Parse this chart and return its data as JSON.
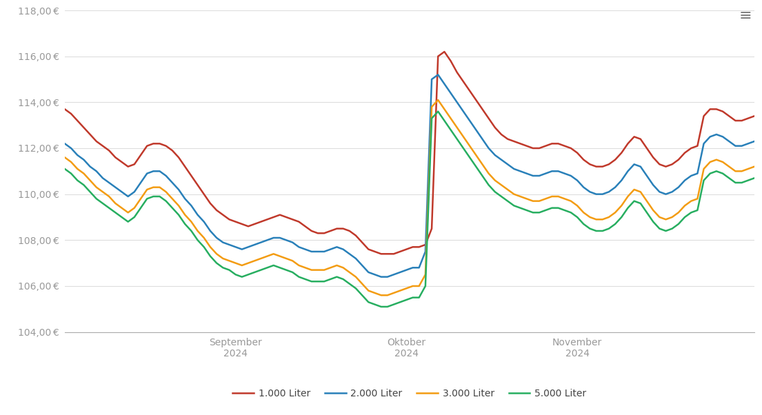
{
  "ylim": [
    104.0,
    118.0
  ],
  "ytick_step": 2.0,
  "background_color": "#ffffff",
  "grid_color": "#dddddd",
  "axis_label_color": "#999999",
  "line_colors": {
    "1000": "#c0392b",
    "2000": "#2980b9",
    "3000": "#f39c12",
    "5000": "#27ae60"
  },
  "legend_labels": [
    "1.000 Liter",
    "2.000 Liter",
    "3.000 Liter",
    "5.000 Liter"
  ],
  "line_width": 1.8,
  "sep_tick": 0.25,
  "okt_tick": 0.5,
  "nov_tick": 0.75,
  "series_1000": [
    113.7,
    113.5,
    113.2,
    112.9,
    112.6,
    112.3,
    112.1,
    111.9,
    111.6,
    111.4,
    111.2,
    111.3,
    111.7,
    112.1,
    112.2,
    112.2,
    112.1,
    111.9,
    111.6,
    111.2,
    110.8,
    110.4,
    110.0,
    109.6,
    109.3,
    109.1,
    108.9,
    108.8,
    108.7,
    108.6,
    108.7,
    108.8,
    108.9,
    109.0,
    109.1,
    109.0,
    108.9,
    108.8,
    108.6,
    108.4,
    108.3,
    108.3,
    108.4,
    108.5,
    108.5,
    108.4,
    108.2,
    107.9,
    107.6,
    107.5,
    107.4,
    107.4,
    107.4,
    107.5,
    107.6,
    107.7,
    107.7,
    107.8,
    108.5,
    116.0,
    116.2,
    115.8,
    115.3,
    114.9,
    114.5,
    114.1,
    113.7,
    113.3,
    112.9,
    112.6,
    112.4,
    112.3,
    112.2,
    112.1,
    112.0,
    112.0,
    112.1,
    112.2,
    112.2,
    112.1,
    112.0,
    111.8,
    111.5,
    111.3,
    111.2,
    111.2,
    111.3,
    111.5,
    111.8,
    112.2,
    112.5,
    112.4,
    112.0,
    111.6,
    111.3,
    111.2,
    111.3,
    111.5,
    111.8,
    112.0,
    112.1,
    113.4,
    113.7,
    113.7,
    113.6,
    113.4,
    113.2,
    113.2,
    113.3,
    113.4
  ],
  "series_2000": [
    112.2,
    112.0,
    111.7,
    111.5,
    111.2,
    111.0,
    110.7,
    110.5,
    110.3,
    110.1,
    109.9,
    110.1,
    110.5,
    110.9,
    111.0,
    111.0,
    110.8,
    110.5,
    110.2,
    109.8,
    109.5,
    109.1,
    108.8,
    108.4,
    108.1,
    107.9,
    107.8,
    107.7,
    107.6,
    107.7,
    107.8,
    107.9,
    108.0,
    108.1,
    108.1,
    108.0,
    107.9,
    107.7,
    107.6,
    107.5,
    107.5,
    107.5,
    107.6,
    107.7,
    107.6,
    107.4,
    107.2,
    106.9,
    106.6,
    106.5,
    106.4,
    106.4,
    106.5,
    106.6,
    106.7,
    106.8,
    106.8,
    107.5,
    115.0,
    115.2,
    114.8,
    114.4,
    114.0,
    113.6,
    113.2,
    112.8,
    112.4,
    112.0,
    111.7,
    111.5,
    111.3,
    111.1,
    111.0,
    110.9,
    110.8,
    110.8,
    110.9,
    111.0,
    111.0,
    110.9,
    110.8,
    110.6,
    110.3,
    110.1,
    110.0,
    110.0,
    110.1,
    110.3,
    110.6,
    111.0,
    111.3,
    111.2,
    110.8,
    110.4,
    110.1,
    110.0,
    110.1,
    110.3,
    110.6,
    110.8,
    110.9,
    112.2,
    112.5,
    112.6,
    112.5,
    112.3,
    112.1,
    112.1,
    112.2,
    112.3
  ],
  "series_3000": [
    111.6,
    111.4,
    111.1,
    110.9,
    110.6,
    110.3,
    110.1,
    109.9,
    109.6,
    109.4,
    109.2,
    109.4,
    109.8,
    110.2,
    110.3,
    110.3,
    110.1,
    109.8,
    109.5,
    109.1,
    108.8,
    108.4,
    108.1,
    107.7,
    107.4,
    107.2,
    107.1,
    107.0,
    106.9,
    107.0,
    107.1,
    107.2,
    107.3,
    107.4,
    107.3,
    107.2,
    107.1,
    106.9,
    106.8,
    106.7,
    106.7,
    106.7,
    106.8,
    106.9,
    106.8,
    106.6,
    106.4,
    106.1,
    105.8,
    105.7,
    105.6,
    105.6,
    105.7,
    105.8,
    105.9,
    106.0,
    106.0,
    106.5,
    113.8,
    114.1,
    113.7,
    113.3,
    112.9,
    112.5,
    112.1,
    111.7,
    111.3,
    110.9,
    110.6,
    110.4,
    110.2,
    110.0,
    109.9,
    109.8,
    109.7,
    109.7,
    109.8,
    109.9,
    109.9,
    109.8,
    109.7,
    109.5,
    109.2,
    109.0,
    108.9,
    108.9,
    109.0,
    109.2,
    109.5,
    109.9,
    110.2,
    110.1,
    109.7,
    109.3,
    109.0,
    108.9,
    109.0,
    109.2,
    109.5,
    109.7,
    109.8,
    111.1,
    111.4,
    111.5,
    111.4,
    111.2,
    111.0,
    111.0,
    111.1,
    111.2
  ],
  "series_5000": [
    111.1,
    110.9,
    110.6,
    110.4,
    110.1,
    109.8,
    109.6,
    109.4,
    109.2,
    109.0,
    108.8,
    109.0,
    109.4,
    109.8,
    109.9,
    109.9,
    109.7,
    109.4,
    109.1,
    108.7,
    108.4,
    108.0,
    107.7,
    107.3,
    107.0,
    106.8,
    106.7,
    106.5,
    106.4,
    106.5,
    106.6,
    106.7,
    106.8,
    106.9,
    106.8,
    106.7,
    106.6,
    106.4,
    106.3,
    106.2,
    106.2,
    106.2,
    106.3,
    106.4,
    106.3,
    106.1,
    105.9,
    105.6,
    105.3,
    105.2,
    105.1,
    105.1,
    105.2,
    105.3,
    105.4,
    105.5,
    105.5,
    106.0,
    113.3,
    113.6,
    113.2,
    112.8,
    112.4,
    112.0,
    111.6,
    111.2,
    110.8,
    110.4,
    110.1,
    109.9,
    109.7,
    109.5,
    109.4,
    109.3,
    109.2,
    109.2,
    109.3,
    109.4,
    109.4,
    109.3,
    109.2,
    109.0,
    108.7,
    108.5,
    108.4,
    108.4,
    108.5,
    108.7,
    109.0,
    109.4,
    109.7,
    109.6,
    109.2,
    108.8,
    108.5,
    108.4,
    108.5,
    108.7,
    109.0,
    109.2,
    109.3,
    110.6,
    110.9,
    111.0,
    110.9,
    110.7,
    110.5,
    110.5,
    110.6,
    110.7
  ]
}
